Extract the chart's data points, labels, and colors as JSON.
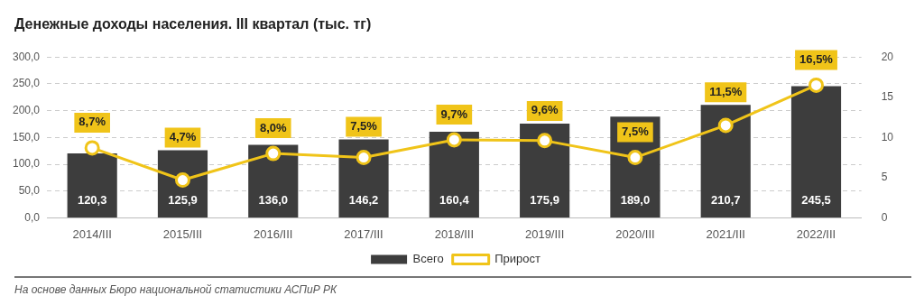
{
  "chart_data": {
    "type": "bar",
    "title": "Денежные доходы населения. III квартал (тыс. тг)",
    "categories": [
      "2014/III",
      "2015/III",
      "2016/III",
      "2017/III",
      "2018/III",
      "2019/III",
      "2020/III",
      "2021/III",
      "2022/III"
    ],
    "series": [
      {
        "name": "Всего",
        "color": "#3d3d3d",
        "values": [
          120.3,
          125.9,
          136.0,
          146.2,
          160.4,
          175.9,
          189.0,
          210.7,
          245.5
        ],
        "value_labels": [
          "120,3",
          "125,9",
          "136,0",
          "146,2",
          "160,4",
          "175,9",
          "189,0",
          "210,7",
          "245,5"
        ]
      },
      {
        "name": "Прирост",
        "type": "line",
        "axis": "y2",
        "color": "#f0c419",
        "values": [
          8.7,
          4.7,
          8.0,
          7.5,
          9.7,
          9.6,
          7.5,
          11.5,
          16.5
        ],
        "value_labels": [
          "8,7%",
          "4,7%",
          "8,0%",
          "7,5%",
          "9,7%",
          "9,6%",
          "7,5%",
          "11,5%",
          "16,5%"
        ]
      }
    ],
    "ylim": [
      0,
      300
    ],
    "yticks": [
      {
        "value": 0,
        "label": "0,0"
      },
      {
        "value": 50,
        "label": "50,0"
      },
      {
        "value": 100,
        "label": "100,0"
      },
      {
        "value": 150,
        "label": "150,0"
      },
      {
        "value": 200,
        "label": "200,0"
      },
      {
        "value": 250,
        "label": "250,0"
      },
      {
        "value": 300,
        "label": "300,0"
      }
    ],
    "y2lim": [
      0,
      20
    ],
    "y2ticks": [
      0,
      5,
      10,
      15,
      20
    ],
    "grid": "y",
    "legend": "bottom",
    "marker": "circle",
    "line_style": "solid",
    "annotations": [
      "На основе данных Бюро национальной статистики АСПиР РК"
    ]
  }
}
